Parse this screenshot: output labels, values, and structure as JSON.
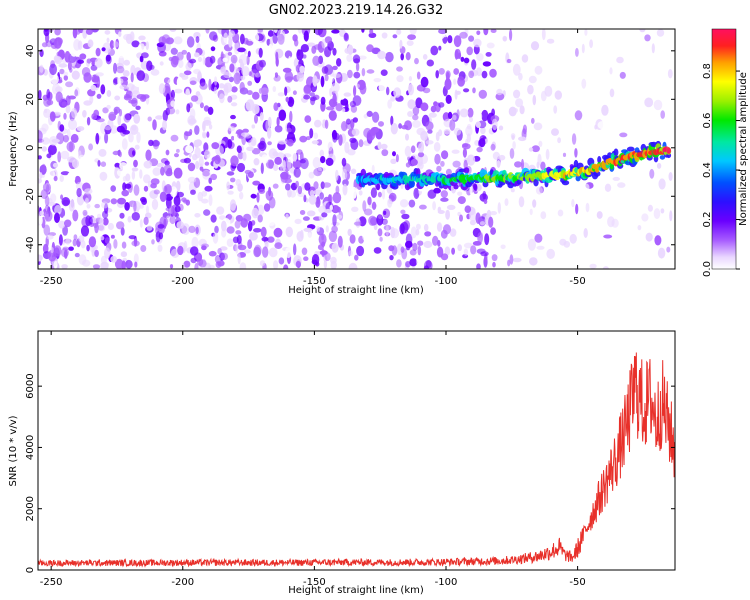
{
  "title": "GN02.2023.219.14.26.G32",
  "chart_data": [
    {
      "type": "heatmap",
      "xlabel": "Height of straight line (km)",
      "ylabel": "Frequency (Hz)",
      "xlim": [
        -255,
        -13
      ],
      "ylim": [
        -50,
        49
      ],
      "xticks": [
        -250,
        -200,
        -150,
        -100,
        -50
      ],
      "yticks": [
        40,
        20,
        0,
        -20,
        -40
      ],
      "colorbar": {
        "label": "Normalized spectral amplitude",
        "range": [
          0,
          0.97
        ],
        "ticks": [
          0.0,
          0.2,
          0.4,
          0.6,
          0.8
        ]
      },
      "signal_track": {
        "description_points": [
          {
            "x": -133,
            "y": -13
          },
          {
            "x": -100,
            "y": -13
          },
          {
            "x": -70,
            "y": -12
          },
          {
            "x": -55,
            "y": -11
          },
          {
            "x": -45,
            "y": -9
          },
          {
            "x": -35,
            "y": -5
          },
          {
            "x": -25,
            "y": -2
          },
          {
            "x": -15,
            "y": -1
          }
        ]
      }
    },
    {
      "type": "line",
      "xlabel": "Height of straight line (km)",
      "ylabel": "SNR (10 * v/v)",
      "xlim": [
        -255,
        -13
      ],
      "ylim": [
        0,
        7800
      ],
      "xticks": [
        -250,
        -200,
        -150,
        -100,
        -50
      ],
      "yticks": [
        0,
        2000,
        4000,
        6000
      ],
      "color": "#e8302a",
      "series": [
        {
          "x": [
            -255,
            -240,
            -220,
            -200,
            -180,
            -160,
            -140,
            -120,
            -100,
            -90,
            -80,
            -75,
            -70,
            -65,
            -60,
            -57,
            -55,
            -52,
            -50,
            -47,
            -45,
            -42,
            -40,
            -37,
            -35,
            -32,
            -30,
            -28,
            -25,
            -22,
            -20,
            -18,
            -15,
            -13
          ],
          "values": [
            220,
            230,
            230,
            240,
            240,
            240,
            250,
            250,
            260,
            280,
            300,
            330,
            380,
            450,
            600,
            750,
            500,
            400,
            700,
            1300,
            1700,
            2300,
            2700,
            3300,
            3700,
            4500,
            5200,
            6000,
            5300,
            5600,
            4800,
            5500,
            4600,
            3800
          ]
        }
      ]
    }
  ]
}
